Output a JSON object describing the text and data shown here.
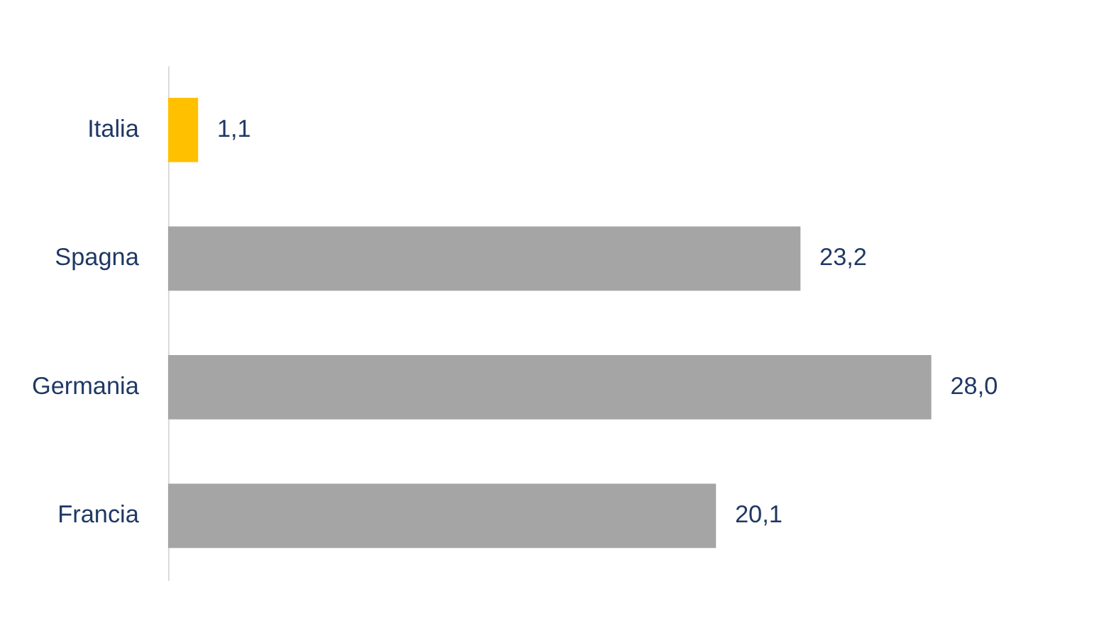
{
  "chart_data": {
    "type": "bar",
    "orientation": "horizontal",
    "categories": [
      "Italia",
      "Spagna",
      "Germania",
      "Francia"
    ],
    "values": [
      1.1,
      23.2,
      28.0,
      20.1
    ],
    "colors": [
      "#ffc000",
      "#a5a5a5",
      "#a5a5a5",
      "#a5a5a5"
    ],
    "value_labels": [
      "1,1",
      "23,2",
      "28,0",
      "20,1"
    ],
    "grid": false
  }
}
